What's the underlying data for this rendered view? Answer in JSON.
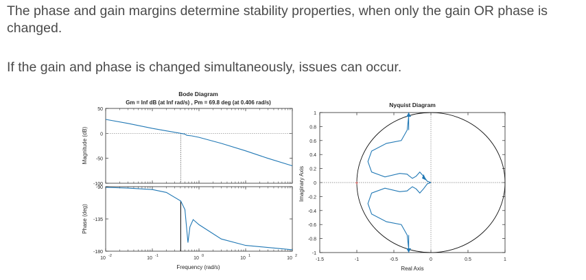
{
  "slide": {
    "paragraph1": "The phase and gain margins determine stability properties, when only the gain OR phase is changed.",
    "paragraph2": "If the gain and phase is changed simultaneously, issues can occur."
  },
  "bode": {
    "title": "Bode Diagram",
    "subtitle": "Gm = Inf dB (at Inf rad/s) ,  Pm = 69.8 deg (at 0.406 rad/s)",
    "mag_ylabel": "Magnitude (dB)",
    "phase_ylabel": "Phase (deg)",
    "xlabel": "Frequency  (rad/s)",
    "mag_ticks": [
      "50",
      "0",
      "-50",
      "-100"
    ],
    "phase_ticks": [
      "-90",
      "-135",
      "-180"
    ],
    "x_ticks": [
      {
        "base": "10",
        "exp": "-2"
      },
      {
        "base": "10",
        "exp": "-1"
      },
      {
        "base": "10",
        "exp": "0"
      },
      {
        "base": "10",
        "exp": "1"
      },
      {
        "base": "10",
        "exp": "2"
      }
    ]
  },
  "nyquist": {
    "title": "Nyquist Diagram",
    "xlabel": "Real Axis",
    "ylabel": "Imaginary Axis",
    "x_ticks": [
      "-1.5",
      "-1",
      "-0.5",
      "0",
      "0.5",
      "1"
    ],
    "y_ticks": [
      "1",
      "0.8",
      "0.6",
      "0.4",
      "0.2",
      "0",
      "-0.2",
      "-0.4",
      "-0.6",
      "-0.8",
      "-1"
    ]
  },
  "colors": {
    "curve": "#1f77b4",
    "critical_point": "#e53935",
    "axis": "#262626"
  },
  "chart_data": [
    {
      "type": "line",
      "title": "Bode Diagram",
      "subtitle": "Gm = Inf dB (at Inf rad/s) ,  Pm = 69.8 deg (at 0.406 rad/s)",
      "xlabel": "Frequency  (rad/s)",
      "xscale": "log",
      "xlim": [
        0.01,
        100
      ],
      "panels": [
        {
          "ylabel": "Magnitude (dB)",
          "ylim": [
            -100,
            50
          ],
          "series": [
            {
              "x": [
                0.01,
                0.03,
                0.1,
                0.2,
                0.406,
                0.5,
                0.55,
                0.7,
                1,
                3,
                10,
                30,
                100
              ],
              "values": [
                28,
                20,
                10,
                5,
                0,
                -1.5,
                -4,
                -5,
                -8,
                -20,
                -35,
                -50,
                -65
              ]
            }
          ]
        },
        {
          "ylabel": "Phase (deg)",
          "ylim": [
            -180,
            -90
          ],
          "series": [
            {
              "x": [
                0.01,
                0.03,
                0.1,
                0.2,
                0.406,
                0.5,
                0.58,
                0.64,
                0.75,
                1,
                3,
                10,
                100
              ],
              "values": [
                -91,
                -92,
                -94,
                -98,
                -110,
                -122,
                -168,
                -146,
                -136,
                -143,
                -163,
                -172,
                -178
              ]
            }
          ]
        }
      ],
      "markers": {
        "phase_margin_deg": 69.8,
        "phase_margin_freq": 0.406
      }
    },
    {
      "type": "line",
      "title": "Nyquist Diagram",
      "xlabel": "Real Axis",
      "ylabel": "Imaginary Axis",
      "xlim": [
        -1.5,
        1
      ],
      "ylim": [
        -1,
        1
      ],
      "unit_circle": true,
      "critical_point": [
        -1,
        0
      ],
      "series": [
        {
          "x": [
            -0.3,
            -0.32,
            -0.4,
            -0.6,
            -0.8,
            -0.85,
            -0.8,
            -0.62,
            -0.42,
            -0.32,
            -0.3,
            -0.25,
            -0.2,
            -0.15,
            -0.1,
            -0.05,
            0
          ],
          "values": [
            0.95,
            0.75,
            0.6,
            0.56,
            0.45,
            0.3,
            0.15,
            0.08,
            0.13,
            0.12,
            0.1,
            0.06,
            0.09,
            0.15,
            0.09,
            0.02,
            0
          ]
        },
        {
          "x": [
            -0.3,
            -0.32,
            -0.4,
            -0.6,
            -0.8,
            -0.85,
            -0.8,
            -0.62,
            -0.42,
            -0.32,
            -0.3,
            -0.25,
            -0.2,
            -0.15,
            -0.1,
            -0.05,
            0
          ],
          "values": [
            -0.95,
            -0.75,
            -0.6,
            -0.56,
            -0.45,
            -0.3,
            -0.15,
            -0.08,
            -0.13,
            -0.12,
            -0.1,
            -0.06,
            -0.09,
            -0.15,
            -0.09,
            -0.02,
            0
          ]
        }
      ]
    }
  ]
}
